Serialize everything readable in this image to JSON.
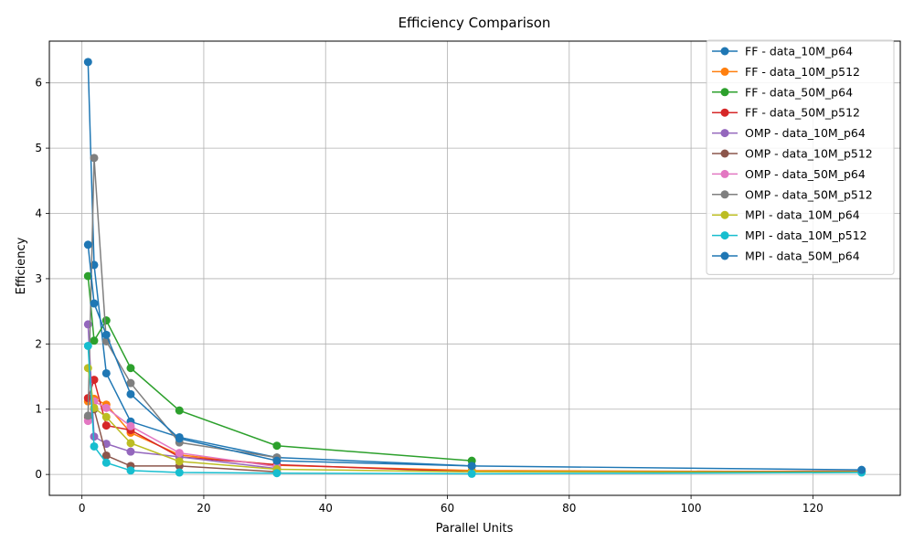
{
  "chart_data": {
    "type": "line",
    "title": "Efficiency Comparison",
    "xlabel": "Parallel Units",
    "ylabel": "Efficiency",
    "xlim": [
      -5.35,
      134.35
    ],
    "ylim": [
      -0.32,
      6.64
    ],
    "xticks": [
      0,
      20,
      40,
      60,
      80,
      100,
      120
    ],
    "yticks": [
      0,
      1,
      2,
      3,
      4,
      5,
      6
    ],
    "grid": true,
    "legend_position": "top-right",
    "series": [
      {
        "name": "FF - data_10M_p64",
        "color": "#1f77b4",
        "x": [
          1,
          2,
          4,
          8,
          16,
          32,
          64
        ],
        "y": [
          6.32,
          3.21,
          1.55,
          0.81,
          0.57,
          0.26,
          0.13
        ]
      },
      {
        "name": "FF - data_10M_p512",
        "color": "#ff7f0e",
        "x": [
          1,
          2,
          4,
          8,
          16,
          32,
          64,
          128
        ],
        "y": [
          1.12,
          1.16,
          1.07,
          0.64,
          0.3,
          0.14,
          0.06,
          0.04
        ]
      },
      {
        "name": "FF - data_50M_p64",
        "color": "#2ca02c",
        "x": [
          1,
          2,
          4,
          8,
          16,
          32,
          64
        ],
        "y": [
          3.04,
          2.05,
          2.36,
          1.63,
          0.98,
          0.44,
          0.21
        ]
      },
      {
        "name": "FF - data_50M_p512",
        "color": "#d62728",
        "x": [
          1,
          2,
          4,
          8,
          16,
          32,
          64,
          128
        ],
        "y": [
          1.17,
          1.45,
          0.75,
          0.68,
          0.27,
          0.15,
          0.04,
          0.05
        ]
      },
      {
        "name": "OMP - data_10M_p64",
        "color": "#9467bd",
        "x": [
          1,
          2,
          4,
          8,
          16,
          32
        ],
        "y": [
          2.3,
          0.58,
          0.47,
          0.35,
          0.27,
          0.09
        ]
      },
      {
        "name": "OMP - data_10M_p512",
        "color": "#8c564b",
        "x": [
          1,
          2,
          4,
          8,
          16,
          32
        ],
        "y": [
          0.88,
          1.0,
          0.29,
          0.13,
          0.13,
          0.04
        ]
      },
      {
        "name": "OMP - data_50M_p64",
        "color": "#e377c2",
        "x": [
          1,
          2,
          4,
          8,
          16,
          32
        ],
        "y": [
          0.82,
          1.12,
          1.02,
          0.74,
          0.33,
          0.12
        ]
      },
      {
        "name": "OMP - data_50M_p512",
        "color": "#7f7f7f",
        "x": [
          1,
          2,
          4,
          8,
          16,
          32
        ],
        "y": [
          0.9,
          4.85,
          2.04,
          1.4,
          0.49,
          0.26
        ]
      },
      {
        "name": "MPI - data_10M_p64",
        "color": "#bcbd22",
        "x": [
          1,
          2,
          4,
          8,
          16,
          32,
          64,
          128
        ],
        "y": [
          1.63,
          1.02,
          0.88,
          0.48,
          0.2,
          0.08,
          0.04,
          0.04
        ]
      },
      {
        "name": "MPI - data_10M_p512",
        "color": "#17becf",
        "x": [
          1,
          2,
          4,
          8,
          16,
          32,
          64,
          128
        ],
        "y": [
          1.97,
          0.43,
          0.18,
          0.06,
          0.03,
          0.02,
          0.01,
          0.03
        ]
      },
      {
        "name": "MPI - data_50M_p64",
        "color": "#1f77b4",
        "x": [
          1,
          2,
          4,
          8,
          16,
          32,
          64,
          128
        ],
        "y": [
          3.52,
          2.62,
          2.14,
          1.23,
          0.55,
          0.21,
          0.13,
          0.07
        ]
      }
    ]
  }
}
